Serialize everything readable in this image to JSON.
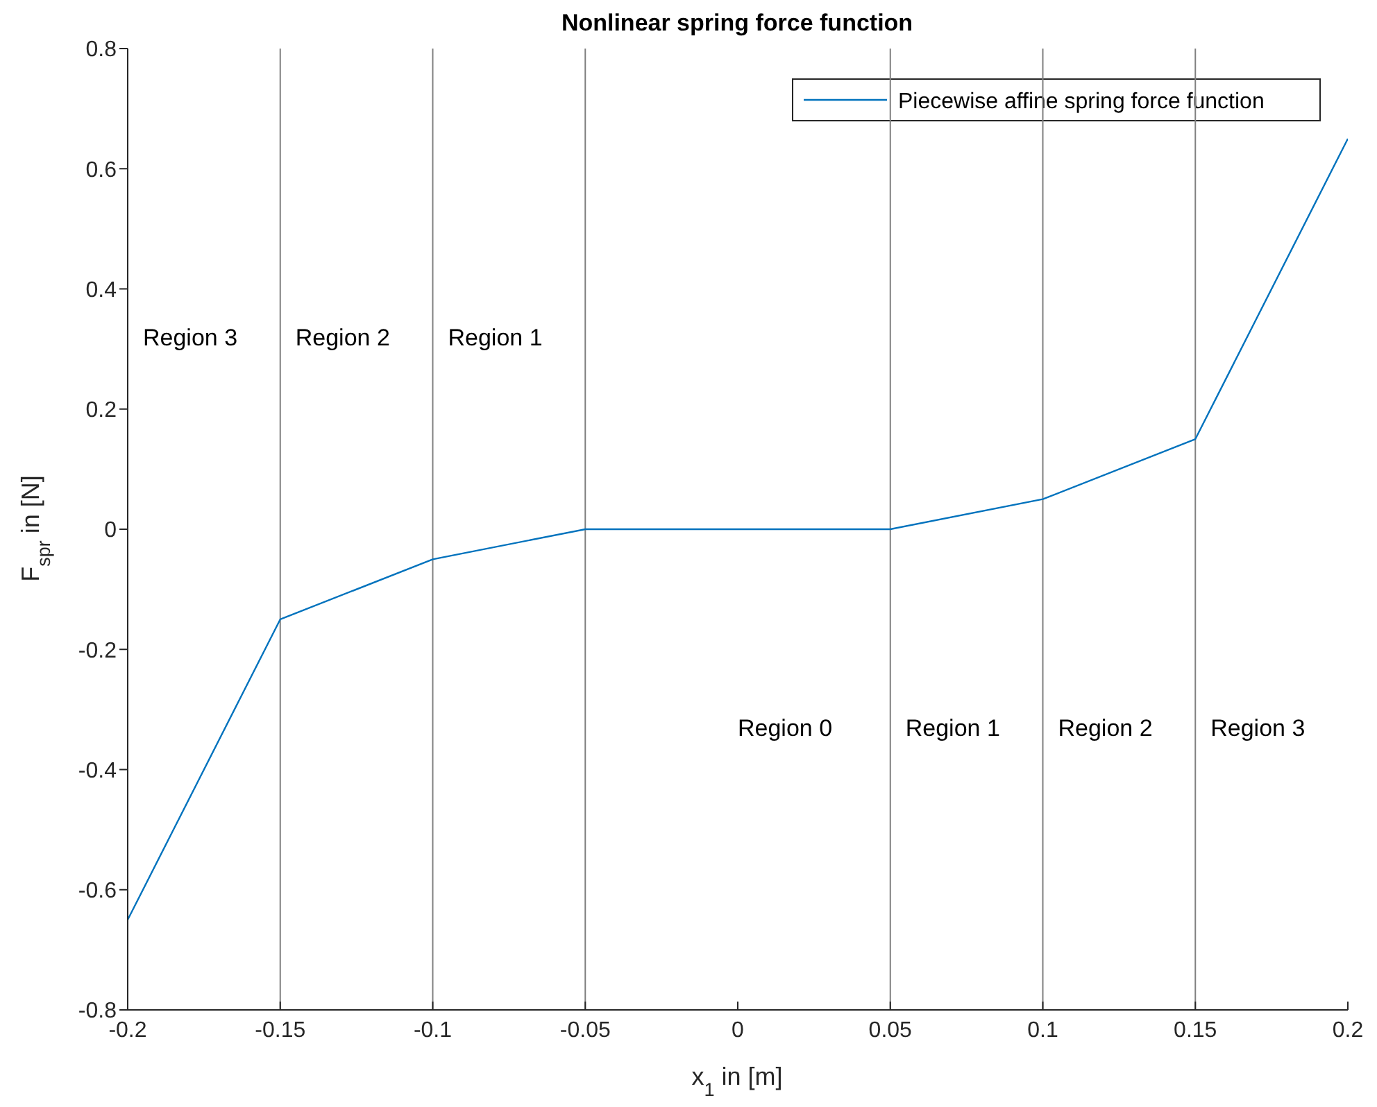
{
  "chart_data": {
    "type": "line",
    "title": "Nonlinear spring force function",
    "xlabel": "x$_{1}$ in [m]",
    "ylabel": "F$_{spr}$ in [N]",
    "x": [
      -0.2,
      -0.15,
      -0.1,
      -0.05,
      0.05,
      0.1,
      0.15,
      0.2
    ],
    "series": [
      {
        "name": "Piecewise affine spring force function",
        "color": "#0072bd",
        "values": [
          -0.65,
          -0.15,
          -0.05,
          0,
          0,
          0.05,
          0.15,
          0.65
        ]
      }
    ],
    "xlim": [
      -0.2,
      0.2
    ],
    "xticks": [
      -0.2,
      -0.15,
      -0.1,
      -0.05,
      0,
      0.05,
      0.1,
      0.15,
      0.2
    ],
    "ylim": [
      -0.8,
      0.8
    ],
    "yticks": [
      -0.8,
      -0.6,
      -0.4,
      -0.2,
      0,
      0.2,
      0.4,
      0.6,
      0.8
    ],
    "ref_lines": [
      {
        "axis": "x",
        "value": -0.15,
        "color": "#808080"
      },
      {
        "axis": "x",
        "value": -0.1,
        "color": "#808080"
      },
      {
        "axis": "x",
        "value": -0.05,
        "color": "#808080"
      },
      {
        "axis": "x",
        "value": 0.05,
        "color": "#808080"
      },
      {
        "axis": "x",
        "value": 0.1,
        "color": "#808080"
      },
      {
        "axis": "x",
        "value": 0.15,
        "color": "#808080"
      }
    ],
    "annotations": [
      "Region 3",
      "Region 2",
      "Region 1",
      "Region 0",
      "Region 1",
      "Region 2",
      "Region 3"
    ],
    "grid": false,
    "legend": "top right",
    "marker": "none",
    "line_style": "solid"
  }
}
